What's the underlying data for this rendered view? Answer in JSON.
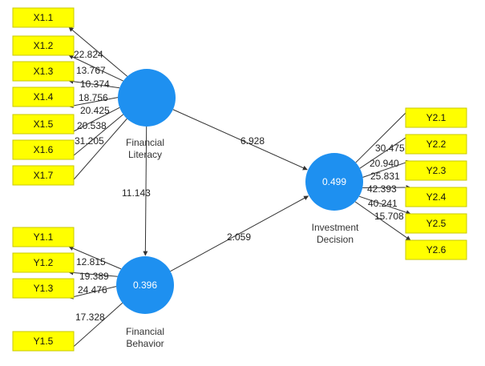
{
  "constructs": {
    "financial_literacy": {
      "label_lines": [
        "Financial",
        "Literacy"
      ],
      "value": ""
    },
    "financial_behavior": {
      "label_lines": [
        "Financial",
        "Behavior"
      ],
      "value": "0.396"
    },
    "investment_decision": {
      "label_lines": [
        "Investment",
        "Decision"
      ],
      "value": "0.499"
    }
  },
  "paths": [
    {
      "from": "financial_literacy",
      "to": "investment_decision",
      "coef": "6.928"
    },
    {
      "from": "financial_literacy",
      "to": "financial_behavior",
      "coef": "11.143"
    },
    {
      "from": "financial_behavior",
      "to": "investment_decision",
      "coef": "2.059"
    }
  ],
  "indicators": {
    "financial_literacy": [
      {
        "name": "X1.1",
        "loading": "22.824"
      },
      {
        "name": "X1.2",
        "loading": "13.767"
      },
      {
        "name": "X1.3",
        "loading": "10.374"
      },
      {
        "name": "X1.4",
        "loading": "18.756"
      },
      {
        "name": "X1.5",
        "loading": "20.425"
      },
      {
        "name": "X1.6",
        "loading": "20.538"
      },
      {
        "name": "X1.7",
        "loading": "31.205"
      }
    ],
    "financial_behavior": [
      {
        "name": "Y1.1",
        "loading": "12.815"
      },
      {
        "name": "Y1.2",
        "loading": "19.389"
      },
      {
        "name": "Y1.3",
        "loading": "24.476"
      },
      {
        "name": "Y1.5",
        "loading": "17.328"
      }
    ],
    "investment_decision": [
      {
        "name": "Y2.1",
        "loading": "30.475"
      },
      {
        "name": "Y2.2",
        "loading": "20.940"
      },
      {
        "name": "Y2.3",
        "loading": "25.831"
      },
      {
        "name": "Y2.4",
        "loading": "42.393"
      },
      {
        "name": "Y2.5",
        "loading": "40.241"
      },
      {
        "name": "Y2.6",
        "loading": "15.708"
      }
    ]
  },
  "colors": {
    "construct": "#1e90f0",
    "indicator": "#ffff00"
  }
}
